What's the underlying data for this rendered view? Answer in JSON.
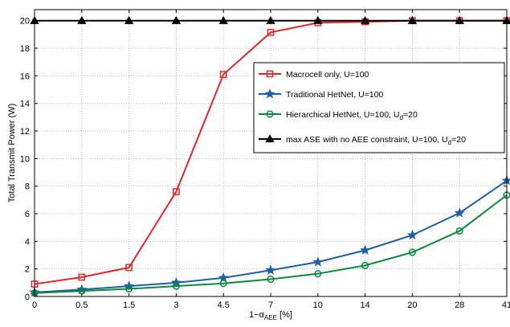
{
  "chart_data": {
    "type": "line",
    "title": "",
    "xlabel": {
      "main": "1−α",
      "sub": "AEE",
      "unit": " [%]"
    },
    "ylabel": "Total Transmit Power (W)",
    "categories": [
      "0",
      "0.5",
      "1.5",
      "3",
      "4.5",
      "7",
      "10",
      "14",
      "20",
      "28",
      "41"
    ],
    "yticks": [
      "0",
      "2",
      "4",
      "6",
      "8",
      "10",
      "12",
      "14",
      "16",
      "18",
      "20"
    ],
    "ylim": [
      0,
      20.8
    ],
    "grid": true,
    "legend_position": "right, upper-middle",
    "series": [
      {
        "name": "Macrocell only, U=100",
        "color": "#e8262a",
        "marker": "square",
        "values": [
          0.9,
          1.4,
          2.1,
          7.6,
          16.1,
          19.15,
          19.85,
          19.92,
          20.0,
          20.0,
          20.0
        ]
      },
      {
        "name": "Traditional HetNet, U=100",
        "color": "#1f5fa8",
        "marker": "star",
        "values": [
          0.3,
          0.5,
          0.75,
          1.0,
          1.35,
          1.9,
          2.5,
          3.35,
          4.45,
          6.05,
          8.4
        ]
      },
      {
        "name": "Hierarchical HetNet, U=100, U",
        "name_sub": "d",
        "name_suffix": "=20",
        "color": "#0a8a3c",
        "marker": "circle",
        "values": [
          0.25,
          0.4,
          0.55,
          0.75,
          0.95,
          1.25,
          1.65,
          2.25,
          3.2,
          4.75,
          7.35
        ]
      },
      {
        "name": "max ASE with no AEE constraint, U=100, U",
        "name_sub": "d",
        "name_suffix": "=20",
        "color": "#000000",
        "marker": "triangle",
        "values": [
          20.0,
          20.0,
          20.0,
          20.0,
          20.0,
          20.0,
          20.0,
          20.0,
          20.0,
          20.0,
          20.0
        ]
      }
    ]
  }
}
